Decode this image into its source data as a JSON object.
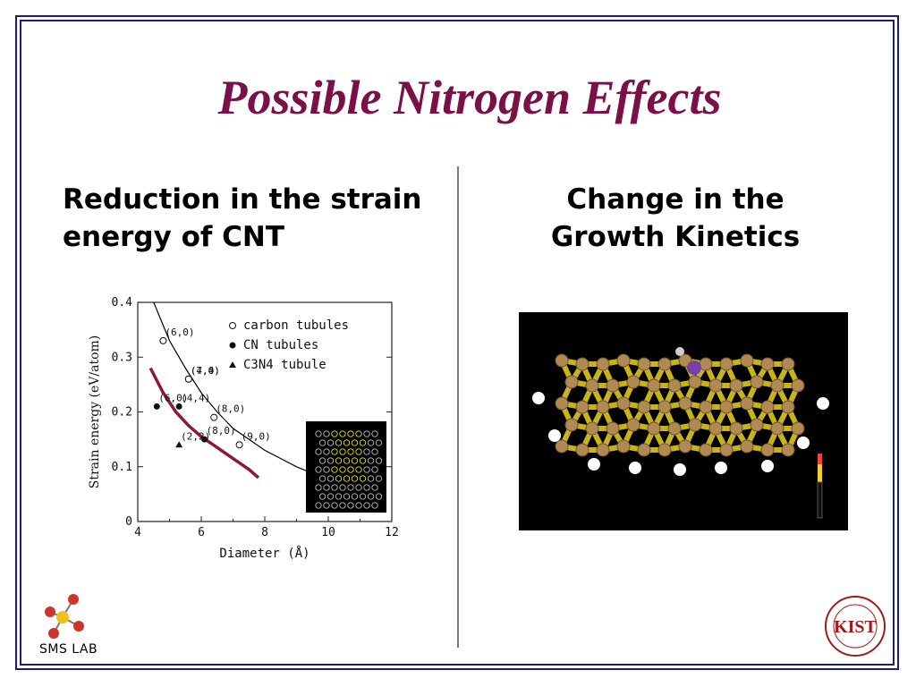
{
  "slide": {
    "title": "Possible Nitrogen Effects",
    "left_heading": "Reduction in the strain energy of CNT",
    "right_heading_line1": "Change in the",
    "right_heading_line2": "Growth Kinetics"
  },
  "logos": {
    "left_text": "SMS LAB",
    "right_letters": "KIST"
  },
  "chart_data": {
    "type": "scatter",
    "xlabel": "Diameter (Å)",
    "ylabel": "Strain energy (eV/atom)",
    "xlim": [
      4,
      12
    ],
    "ylim": [
      0,
      0.4
    ],
    "xticks": [
      "4",
      "6",
      "8",
      "10",
      "12"
    ],
    "yticks": [
      "0",
      "0.1",
      "0.2",
      "0.3",
      "0.4"
    ],
    "legend": [
      "carbon tubules",
      "CN tubules",
      "C3N4 tubule"
    ],
    "legend_placement": "top-right",
    "series": [
      {
        "name": "carbon tubules",
        "marker": "open-circle",
        "points": [
          {
            "x": 4.8,
            "y": 0.33,
            "label": "(6,0)"
          },
          {
            "x": 5.6,
            "y": 0.26,
            "label": "(7,0)"
          },
          {
            "x": 5.6,
            "y": 0.26,
            "label": "(4,4)"
          },
          {
            "x": 6.4,
            "y": 0.19,
            "label": "(8,0)"
          },
          {
            "x": 7.2,
            "y": 0.14,
            "label": "(9,0)"
          }
        ]
      },
      {
        "name": "CN tubules",
        "marker": "filled-circle",
        "points": [
          {
            "x": 4.6,
            "y": 0.21,
            "label": "(6,0)"
          },
          {
            "x": 5.3,
            "y": 0.21,
            "label": "(4,4)"
          },
          {
            "x": 6.1,
            "y": 0.15,
            "label": "(8,0)"
          }
        ]
      },
      {
        "name": "C3N4 tubule",
        "marker": "filled-triangle",
        "points": [
          {
            "x": 5.3,
            "y": 0.14,
            "label": "(2,2)"
          }
        ]
      }
    ],
    "curves": [
      {
        "name": "carbon fit",
        "color": "#000000",
        "points": [
          [
            4.5,
            0.4
          ],
          [
            5,
            0.33
          ],
          [
            5.5,
            0.28
          ],
          [
            6,
            0.235
          ],
          [
            6.5,
            0.2
          ],
          [
            7,
            0.17
          ],
          [
            7.5,
            0.15
          ],
          [
            8,
            0.13
          ],
          [
            8.5,
            0.115
          ],
          [
            9,
            0.1
          ],
          [
            9.5,
            0.088
          ],
          [
            10,
            0.078
          ]
        ]
      },
      {
        "name": "CN fit",
        "color": "#8b1a3a",
        "points": [
          [
            4.4,
            0.28
          ],
          [
            4.8,
            0.235
          ],
          [
            5.2,
            0.2
          ],
          [
            5.6,
            0.175
          ],
          [
            6,
            0.155
          ],
          [
            6.5,
            0.135
          ],
          [
            7,
            0.115
          ],
          [
            7.5,
            0.095
          ],
          [
            7.8,
            0.08
          ]
        ]
      }
    ],
    "inset": "nanotube model"
  },
  "colors": {
    "title": "#7a1048",
    "frame": "#1c1c7a",
    "cn_curve": "#8b1a3a"
  }
}
